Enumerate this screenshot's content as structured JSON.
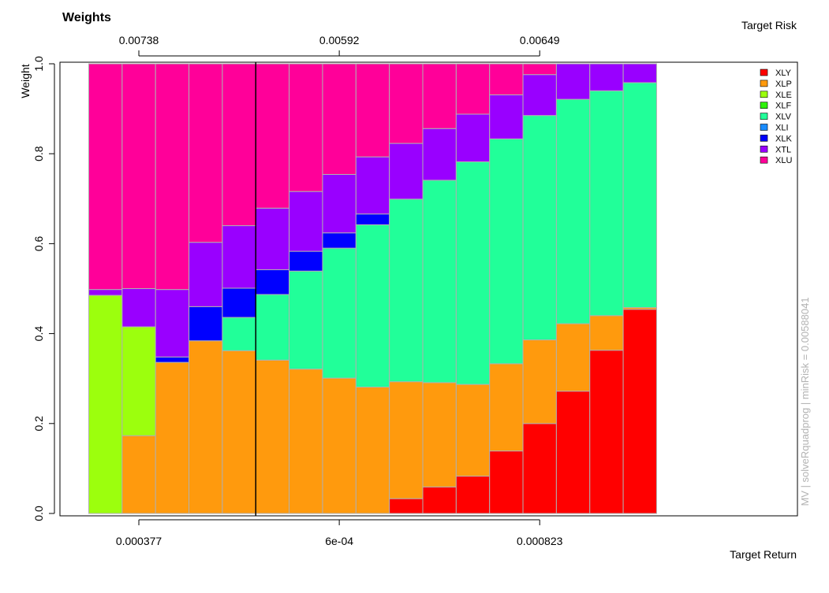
{
  "chart_data": {
    "type": "bar",
    "stacked": true,
    "title": "Weights",
    "ylabel": "Weight",
    "xlabel": "Target Return",
    "top_axis_label": "Target Risk",
    "side_note": "MV | solveRquadprog | minRisk = 0.00588041",
    "ylim": [
      0,
      1
    ],
    "y_ticks": [
      "0.0",
      "0.2",
      "0.4",
      "0.6",
      "0.8",
      "1.0"
    ],
    "n_portfolios": 17,
    "min_risk_portfolio_index": 5,
    "bottom_ticks": [
      {
        "index": 1,
        "label": "0.000377"
      },
      {
        "index": 7,
        "label": "6e-04"
      },
      {
        "index": 13,
        "label": "0.000823"
      }
    ],
    "top_ticks": [
      {
        "index": 1,
        "label": "0.00738"
      },
      {
        "index": 7,
        "label": "0.00592"
      },
      {
        "index": 13,
        "label": "0.00649"
      }
    ],
    "legend_position": "top-right",
    "series": [
      {
        "name": "XLY",
        "color": "#ff0000",
        "values": [
          0,
          0,
          0,
          0,
          0,
          0,
          0,
          0,
          0,
          0.033,
          0.059,
          0.083,
          0.139,
          0.2,
          0.272,
          0.363,
          0.454
        ]
      },
      {
        "name": "XLP",
        "color": "#ff9a0d",
        "values": [
          0,
          0.173,
          0.336,
          0.384,
          0.362,
          0.341,
          0.321,
          0.301,
          0.281,
          0.26,
          0.232,
          0.204,
          0.194,
          0.186,
          0.15,
          0.077,
          0.004
        ]
      },
      {
        "name": "XLE",
        "color": "#9cff0d",
        "values": [
          0.485,
          0.242,
          0,
          0,
          0,
          0,
          0,
          0,
          0,
          0,
          0,
          0,
          0,
          0,
          0,
          0,
          0
        ]
      },
      {
        "name": "XLF",
        "color": "#2ef20a",
        "values": [
          0,
          0,
          0,
          0,
          0,
          0,
          0,
          0,
          0,
          0,
          0,
          0,
          0,
          0,
          0,
          0,
          0
        ]
      },
      {
        "name": "XLV",
        "color": "#21ff99",
        "values": [
          0,
          0,
          0,
          0,
          0.074,
          0.146,
          0.218,
          0.289,
          0.361,
          0.406,
          0.45,
          0.495,
          0.5,
          0.499,
          0.499,
          0.5,
          0.5
        ]
      },
      {
        "name": "XLI",
        "color": "#1a8cff",
        "values": [
          0,
          0,
          0,
          0,
          0,
          0,
          0,
          0,
          0,
          0,
          0,
          0,
          0,
          0,
          0,
          0,
          0
        ]
      },
      {
        "name": "XLK",
        "color": "#0000ff",
        "values": [
          0,
          0,
          0.012,
          0.076,
          0.065,
          0.055,
          0.044,
          0.034,
          0.024,
          0,
          0,
          0,
          0,
          0,
          0,
          0,
          0
        ]
      },
      {
        "name": "XTL",
        "color": "#9900ff",
        "values": [
          0.013,
          0.085,
          0.15,
          0.143,
          0.139,
          0.137,
          0.133,
          0.13,
          0.127,
          0.124,
          0.115,
          0.106,
          0.098,
          0.091,
          0.079,
          0.06,
          0.042
        ]
      },
      {
        "name": "XLU",
        "color": "#ff0099",
        "values": [
          0.502,
          0.5,
          0.502,
          0.397,
          0.36,
          0.321,
          0.284,
          0.246,
          0.207,
          0.177,
          0.144,
          0.112,
          0.069,
          0.024,
          0,
          0,
          0
        ]
      }
    ]
  }
}
